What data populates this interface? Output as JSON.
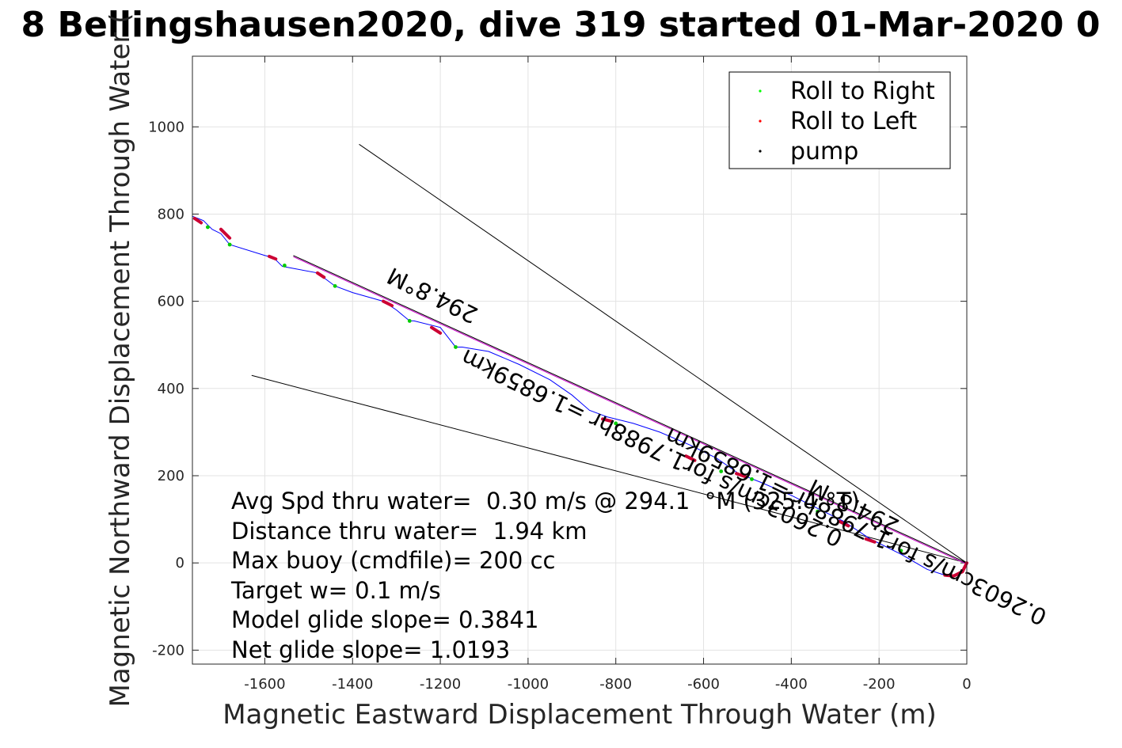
{
  "chart_data": {
    "type": "line",
    "title": "8 Bellingshausen2020, dive 319 started 01-Mar-2020 0",
    "xlabel": "Magnetic Eastward Displacement Through Water (m)",
    "ylabel": "Magnetic Northward Displacement Through Water (",
    "xlim": [
      -1765,
      0
    ],
    "ylim": [
      -232,
      1162
    ],
    "xticks": [
      -1600,
      -1400,
      -1200,
      -1000,
      -800,
      -600,
      -400,
      -200,
      0
    ],
    "yticks": [
      -200,
      0,
      200,
      400,
      600,
      800,
      1000
    ],
    "xtick_labels": [
      "-1600",
      "-1400",
      "-1200",
      "-1000",
      "-800",
      "-600",
      "-400",
      "-200",
      "0"
    ],
    "ytick_labels": [
      "-200",
      "0",
      "200",
      "400",
      "600",
      "800",
      "1000"
    ],
    "grid": true,
    "legend_position": "top-right",
    "legend": [
      {
        "label": "Roll to Right",
        "color": "#00ff00"
      },
      {
        "label": "Roll to Left",
        "color": "#ff0000"
      },
      {
        "label": "pump",
        "color": "#000000"
      }
    ],
    "track": {
      "color": "#0000ff",
      "x": [
        0,
        -8,
        -25,
        -50,
        -90,
        -150,
        -220,
        -280,
        -330,
        -400,
        -470,
        -520,
        -570,
        -630,
        -700,
        -760,
        -820,
        -860,
        -900,
        -950,
        -1020,
        -1090,
        -1150,
        -1165,
        -1200,
        -1260,
        -1270,
        -1300,
        -1330,
        -1400,
        -1440,
        -1480,
        -1560,
        -1580,
        -1600,
        -1680,
        -1700,
        -1720,
        -1740,
        -1765
      ],
      "y": [
        0,
        -20,
        -30,
        -28,
        -15,
        20,
        55,
        95,
        120,
        155,
        185,
        205,
        240,
        270,
        300,
        320,
        335,
        350,
        385,
        420,
        455,
        485,
        495,
        495,
        540,
        555,
        555,
        580,
        600,
        620,
        635,
        665,
        680,
        700,
        705,
        730,
        755,
        765,
        785,
        795
      ]
    },
    "roll_left_segments": [
      {
        "x": [
          0,
          -10,
          -30,
          -50
        ],
        "y": [
          0,
          -20,
          -30,
          -28
        ]
      },
      {
        "x": [
          -1330,
          -1310
        ],
        "y": [
          600,
          590
        ]
      },
      {
        "x": [
          -1220,
          -1200
        ],
        "y": [
          540,
          527
        ]
      },
      {
        "x": [
          -1480,
          -1465
        ],
        "y": [
          665,
          655
        ]
      },
      {
        "x": [
          -1590,
          -1575
        ],
        "y": [
          703,
          697
        ]
      },
      {
        "x": [
          -1700,
          -1680
        ],
        "y": [
          765,
          745
        ]
      },
      {
        "x": [
          -1760,
          -1745
        ],
        "y": [
          790,
          780
        ]
      },
      {
        "x": [
          -830,
          -810
        ],
        "y": [
          330,
          325
        ]
      },
      {
        "x": [
          -640,
          -620
        ],
        "y": [
          245,
          235
        ]
      },
      {
        "x": [
          -525,
          -505
        ],
        "y": [
          205,
          198
        ]
      },
      {
        "x": [
          -290,
          -270
        ],
        "y": [
          95,
          85
        ]
      },
      {
        "x": [
          -230,
          -210
        ],
        "y": [
          55,
          48
        ]
      }
    ],
    "roll_right_points": {
      "x": [
        -150,
        -340,
        -490,
        -560,
        -800,
        -1165,
        -1270,
        -1440,
        -1555,
        -1680,
        -1730
      ],
      "y": [
        28,
        118,
        192,
        210,
        320,
        495,
        555,
        635,
        682,
        730,
        770
      ]
    },
    "reference_lines": [
      {
        "name": "heading-line-upper",
        "x": [
          0,
          -1385
        ],
        "y": [
          0,
          960
        ]
      },
      {
        "name": "heading-line-lower",
        "x": [
          0,
          -1630
        ],
        "y": [
          0,
          430
        ]
      },
      {
        "name": "course-line",
        "x": [
          0,
          -1535
        ],
        "y": [
          0,
          705
        ]
      }
    ],
    "text_annotations": [
      {
        "text": "294.8°M",
        "x": -1210,
        "y": 630,
        "rotation": 26
      },
      {
        "text": "0.2603cm/s for1.7988hr =1.6859km",
        "x": -710,
        "y": 280,
        "rotation": 26
      },
      {
        "text": "294.8°M",
        "x": -250,
        "y": 145,
        "rotation": 26
      },
      {
        "text": "0.2603cm/s for1.7988hr =1.6859km",
        "x": -245,
        "y": 100,
        "rotation": 26
      }
    ],
    "stats": [
      "Avg Spd thru water=  0.30 m/s @ 294.1  °M (325.4 °T)",
      "Distance thru water=  1.94 km",
      "Max buoy (cmdfile)= 200 cc",
      "Target w= 0.1 m/s",
      "Model glide slope= 0.3841",
      "Net glide slope= 1.0193"
    ]
  }
}
